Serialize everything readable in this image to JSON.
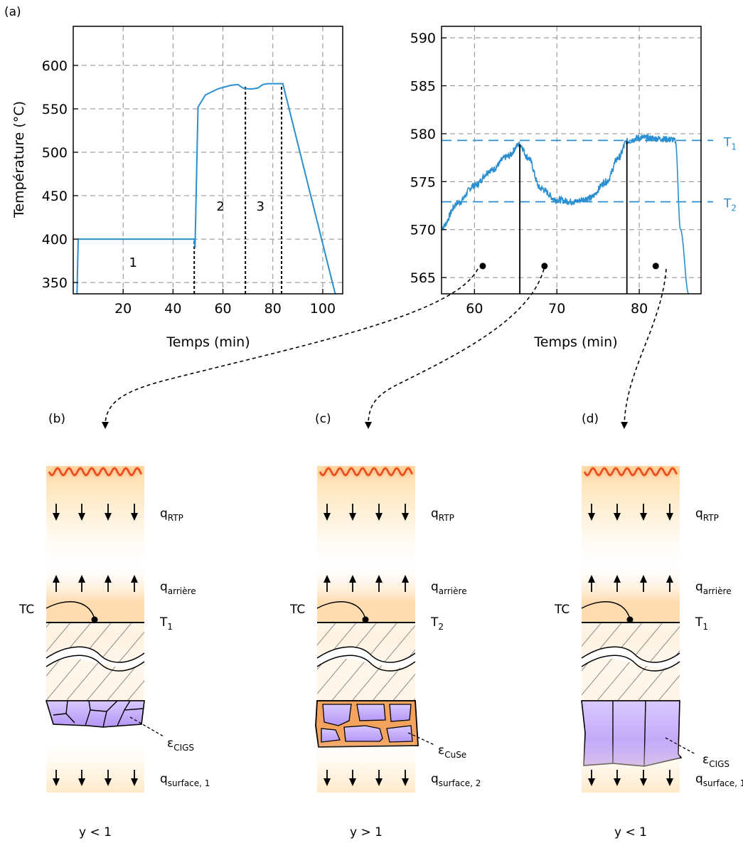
{
  "panel_labels": {
    "a": "(a)",
    "b": "(b)",
    "c": "(c)",
    "d": "(d)"
  },
  "colors": {
    "curve": "#2a8fd0",
    "heater": "#e8501e",
    "grain_cigs": "#c9b3fb",
    "grain_cuse": "#f3a35e",
    "grid": "#8a8a8a"
  },
  "chart_data": [
    {
      "type": "line",
      "xlabel": "Temps (min)",
      "ylabel": "Température (°C)",
      "xlim": [
        0,
        108
      ],
      "ylim": [
        337,
        645
      ],
      "xticks": [
        "20",
        "40",
        "60",
        "80",
        "100"
      ],
      "yticks": [
        "350",
        "400",
        "450",
        "500",
        "550",
        "600"
      ],
      "grid": true,
      "series": [
        {
          "x": [
            1.5,
            2,
            48.5,
            48.8,
            50,
            53,
            58,
            63,
            66,
            68,
            70,
            72,
            74,
            76,
            78,
            80,
            83.5,
            84,
            105
          ],
          "y": [
            337,
            400,
            400,
            390,
            552,
            566,
            573,
            577,
            578,
            574,
            573,
            573,
            574,
            578,
            579,
            579,
            579,
            579,
            337
          ]
        }
      ],
      "annotations": [
        {
          "text": "1",
          "x": 24,
          "y": 368
        },
        {
          "text": "2",
          "x": 59,
          "y": 433
        },
        {
          "text": "3",
          "x": 75,
          "y": 433
        }
      ],
      "vlines": [
        48.5,
        69,
        83.5
      ]
    },
    {
      "type": "line",
      "xlabel": "Temps (min)",
      "ylabel": "",
      "xlim": [
        56,
        87.5
      ],
      "ylim": [
        563.3,
        591.2
      ],
      "xticks": [
        "60",
        "70",
        "80"
      ],
      "yticks": [
        "565",
        "570",
        "575",
        "580",
        "585",
        "590"
      ],
      "grid": true,
      "series": [
        {
          "x": [
            56,
            58,
            60,
            62,
            64,
            65.5,
            66.5,
            68,
            70,
            72,
            74,
            76,
            77.5,
            78.5,
            80,
            82,
            84,
            84.4,
            85,
            86
          ],
          "y": [
            570.2,
            572.8,
            574.6,
            576.2,
            577.6,
            578.9,
            577.5,
            574.3,
            573.1,
            572.9,
            573.3,
            575,
            577.5,
            579.2,
            579.6,
            579.5,
            579.4,
            579.2,
            570,
            563.3
          ]
        }
      ],
      "reference_lines": [
        {
          "name": "T₁",
          "y": 579.3
        },
        {
          "name": "T₂",
          "y": 572.9
        }
      ],
      "vlines": [
        65.5,
        78.5
      ],
      "markers": [
        {
          "x": 61,
          "y": 566.2
        },
        {
          "x": 68.5,
          "y": 566.2
        },
        {
          "x": 82,
          "y": 566.2
        }
      ]
    }
  ],
  "panels": [
    {
      "id": "b",
      "q_top": "qRTP",
      "q_back": "qarrière",
      "tc": "TC",
      "temp": "T1",
      "eps": "εCIGS",
      "q_bottom": "qsurface, 1",
      "ratio": "y < 1"
    },
    {
      "id": "c",
      "q_top": "qRTP",
      "q_back": "qarrière",
      "tc": "TC",
      "temp": "T2",
      "eps": "εCuSe",
      "q_bottom": "qsurface, 2",
      "ratio": "y > 1"
    },
    {
      "id": "d",
      "q_top": "qRTP",
      "q_back": "qarrière",
      "tc": "TC",
      "temp": "T1",
      "eps": "εCIGS",
      "q_bottom": "qsurface, 1",
      "ratio": "y < 1"
    }
  ],
  "text": {
    "T1_label": "T",
    "T1_sub": "1",
    "T2_label": "T",
    "T2_sub": "2",
    "q": "q",
    "eps": "ε",
    "sub_rtp": "RTP",
    "sub_arriere": "arrière",
    "sub_cigs": "CIGS",
    "sub_cuse": "CuSe",
    "sub_surface1": "surface, 1",
    "sub_surface2": "surface, 2",
    "tc": "TC",
    "ratio_lt": "y < 1",
    "ratio_gt": "y > 1"
  }
}
